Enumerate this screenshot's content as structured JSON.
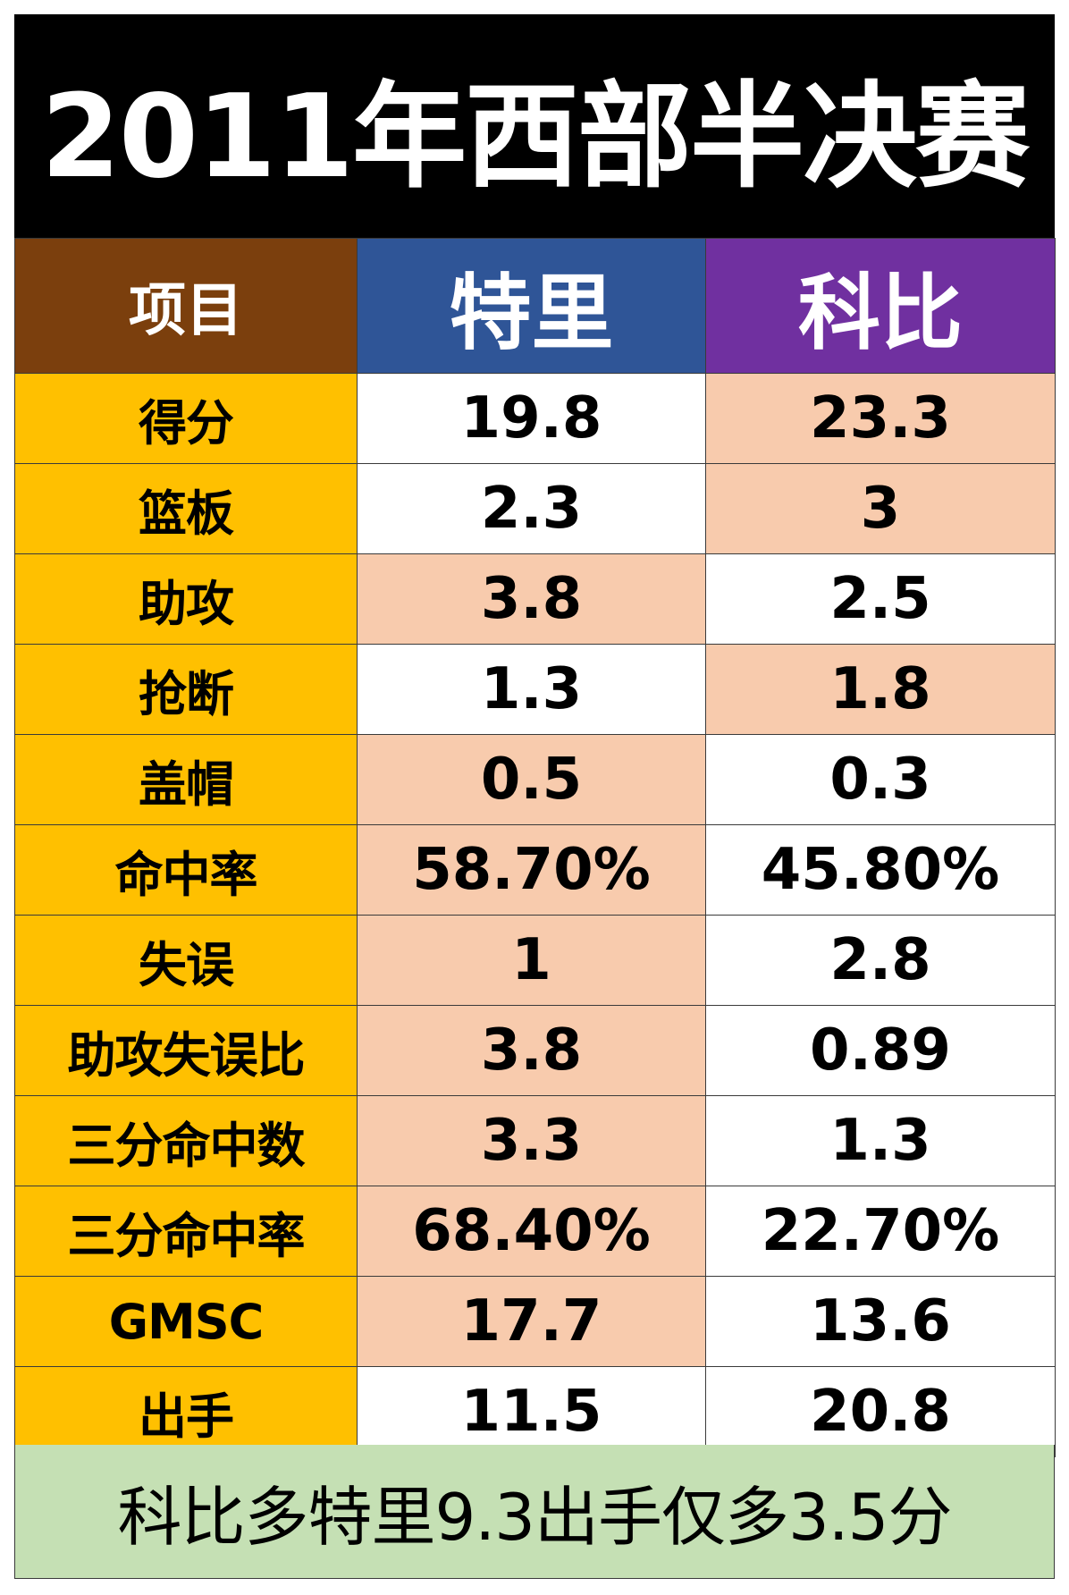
{
  "title": "2011年西部半决赛",
  "header": {
    "item": "项目",
    "player_a": "特里",
    "player_b": "科比"
  },
  "rows": [
    {
      "label": "得分",
      "a": "19.8",
      "b": "23.3",
      "hl": "b"
    },
    {
      "label": "篮板",
      "a": "2.3",
      "b": "3",
      "hl": "b"
    },
    {
      "label": "助攻",
      "a": "3.8",
      "b": "2.5",
      "hl": "a"
    },
    {
      "label": "抢断",
      "a": "1.3",
      "b": "1.8",
      "hl": "b"
    },
    {
      "label": "盖帽",
      "a": "0.5",
      "b": "0.3",
      "hl": "a"
    },
    {
      "label": "命中率",
      "a": "58.70%",
      "b": "45.80%",
      "hl": "a"
    },
    {
      "label": "失误",
      "a": "1",
      "b": "2.8",
      "hl": "a"
    },
    {
      "label": "助攻失误比",
      "a": "3.8",
      "b": "0.89",
      "hl": "a"
    },
    {
      "label": "三分命中数",
      "a": "3.3",
      "b": "1.3",
      "hl": "a"
    },
    {
      "label": "三分命中率",
      "a": "68.40%",
      "b": "22.70%",
      "hl": "a"
    },
    {
      "label": "GMSC",
      "a": "17.7",
      "b": "13.6",
      "hl": "a"
    },
    {
      "label": "出手",
      "a": "11.5",
      "b": "20.8",
      "hl": "none"
    }
  ],
  "footer": "科比多特里9.3出手仅多3.5分",
  "colors": {
    "title_bg": "#000000",
    "header_item_bg": "#7b3f0d",
    "header_a_bg": "#2f5597",
    "header_b_bg": "#7030a0",
    "label_bg": "#ffc000",
    "highlight_bg": "#f8cbad",
    "plain_bg": "#ffffff",
    "footer_bg": "#c5e0b4"
  }
}
